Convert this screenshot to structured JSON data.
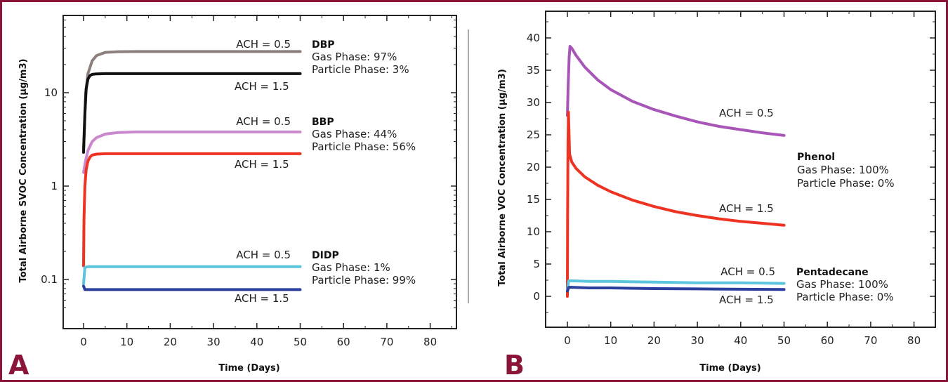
{
  "colors": {
    "border": "#8a1538",
    "panel_letter": "#8a1538",
    "axis": "#222222",
    "divider": "#555555",
    "gray": "#8c7f7c",
    "black": "#111111",
    "pink": "#cc88cc",
    "red": "#ee3322",
    "purple": "#a855b8",
    "cyan": "#5cc5dd",
    "navy": "#2a3f9e"
  },
  "chart_data": [
    {
      "panel": "A",
      "type": "line",
      "xlabel": "Time (Days)",
      "ylabel": "Total Airborne SVOC Concentration (µg/m3)",
      "xlim": [
        -5,
        85
      ],
      "yscale": "log",
      "x_ticks": [
        0,
        10,
        20,
        30,
        40,
        50,
        60,
        70,
        80
      ],
      "y_ticks": [
        {
          "value": 0.1,
          "label": "0.1"
        },
        {
          "value": 1,
          "label": "1"
        },
        {
          "value": 10,
          "label": "10"
        }
      ],
      "series": [
        {
          "color": "#8c7f7c",
          "x": [
            0,
            0.5,
            1,
            2,
            3,
            5,
            8,
            12,
            20,
            30,
            40,
            50
          ],
          "y": [
            2.5,
            10,
            16,
            22,
            25,
            27,
            27.5,
            27.6,
            27.6,
            27.6,
            27.6,
            27.6
          ]
        },
        {
          "color": "#111111",
          "x": [
            0,
            0.3,
            0.6,
            1,
            1.5,
            2,
            3,
            5,
            10,
            20,
            30,
            40,
            50
          ],
          "y": [
            2.3,
            6,
            11,
            14,
            15.3,
            15.7,
            15.9,
            16,
            16,
            16,
            16,
            16,
            16
          ]
        },
        {
          "color": "#cc88cc",
          "x": [
            0,
            0.5,
            1,
            2,
            3,
            5,
            8,
            12,
            20,
            30,
            40,
            50
          ],
          "y": [
            1.4,
            1.9,
            2.4,
            3.0,
            3.3,
            3.6,
            3.75,
            3.8,
            3.8,
            3.8,
            3.8,
            3.8
          ]
        },
        {
          "color": "#ee3322",
          "x": [
            0,
            0.1,
            0.3,
            0.6,
            1,
            1.5,
            2,
            3,
            5,
            10,
            20,
            30,
            40,
            50
          ],
          "y": [
            0.14,
            0.45,
            1.0,
            1.5,
            1.85,
            2.05,
            2.15,
            2.2,
            2.22,
            2.22,
            2.22,
            2.22,
            2.22,
            2.22
          ]
        },
        {
          "color": "#5cc5dd",
          "x": [
            0,
            0.3,
            1,
            5,
            10,
            20,
            30,
            40,
            50
          ],
          "y": [
            0.09,
            0.135,
            0.137,
            0.137,
            0.137,
            0.137,
            0.137,
            0.137,
            0.137
          ]
        },
        {
          "color": "#2a3f9e",
          "x": [
            0,
            0.3,
            1,
            5,
            10,
            20,
            30,
            40,
            50
          ],
          "y": [
            0.085,
            0.078,
            0.078,
            0.078,
            0.078,
            0.078,
            0.078,
            0.078,
            0.078
          ]
        }
      ],
      "annotations": [
        {
          "group": "DBP",
          "name": "DBP",
          "gas": "Gas Phase: 97%",
          "particle": "Particle Phase: 3%",
          "ach_top": "ACH = 0.5",
          "ach_bottom": "ACH = 1.5"
        },
        {
          "group": "BBP",
          "name": "BBP",
          "gas": "Gas Phase: 44%",
          "particle": "Particle Phase: 56%",
          "ach_top": "ACH = 0.5",
          "ach_bottom": "ACH = 1.5"
        },
        {
          "group": "DIDP",
          "name": "DIDP",
          "gas": "Gas Phase: 1%",
          "particle": "Particle Phase: 99%",
          "ach_top": "ACH = 0.5",
          "ach_bottom": "ACH = 1.5"
        }
      ]
    },
    {
      "panel": "B",
      "type": "line",
      "xlabel": "Time (Days)",
      "ylabel": "Total Airborne VOC Concentration (µg/m3)",
      "xlim": [
        -5,
        85
      ],
      "ylim": [
        -5,
        43
      ],
      "x_ticks": [
        0,
        10,
        20,
        30,
        40,
        50,
        60,
        70,
        80
      ],
      "y_ticks": [
        {
          "value": 0,
          "label": "0"
        },
        {
          "value": 5,
          "label": "5"
        },
        {
          "value": 10,
          "label": "10"
        },
        {
          "value": 15,
          "label": "15"
        },
        {
          "value": 20,
          "label": "20"
        },
        {
          "value": 25,
          "label": "25"
        },
        {
          "value": 30,
          "label": "30"
        },
        {
          "value": 35,
          "label": "35"
        },
        {
          "value": 40,
          "label": "40"
        }
      ],
      "series": [
        {
          "color": "#a855b8",
          "x": [
            0,
            0.2,
            0.4,
            0.6,
            1,
            2,
            4,
            7,
            10,
            15,
            20,
            25,
            30,
            35,
            40,
            45,
            50
          ],
          "y": [
            28,
            33,
            37,
            38.7,
            38.4,
            37.3,
            35.5,
            33.5,
            32.0,
            30.2,
            28.9,
            27.9,
            27.0,
            26.3,
            25.8,
            25.3,
            24.9
          ]
        },
        {
          "color": "#ee3322",
          "x": [
            0,
            0.05,
            0.15,
            0.25,
            0.5,
            1,
            2,
            4,
            7,
            10,
            15,
            20,
            25,
            30,
            35,
            40,
            45,
            50
          ],
          "y": [
            0,
            12,
            24,
            28.5,
            22,
            20.8,
            19.8,
            18.5,
            17.2,
            16.2,
            14.9,
            13.9,
            13.1,
            12.5,
            12.0,
            11.6,
            11.3,
            11.0
          ]
        },
        {
          "color": "#5cc5dd",
          "x": [
            0,
            0.3,
            1,
            5,
            10,
            20,
            30,
            40,
            50
          ],
          "y": [
            1.0,
            2.4,
            2.4,
            2.3,
            2.3,
            2.2,
            2.1,
            2.1,
            2.0
          ]
        },
        {
          "color": "#2a3f9e",
          "x": [
            0,
            0.3,
            1,
            5,
            10,
            20,
            30,
            40,
            50
          ],
          "y": [
            0.8,
            1.4,
            1.4,
            1.3,
            1.3,
            1.2,
            1.15,
            1.1,
            1.05
          ]
        }
      ],
      "annotations": [
        {
          "group": "Phenol",
          "name": "Phenol",
          "gas": "Gas Phase: 100%",
          "particle": "Particle Phase: 0%",
          "ach_top": "ACH = 0.5",
          "ach_bottom": "ACH = 1.5"
        },
        {
          "group": "Pentadecane",
          "name": "Pentadecane",
          "gas": "Gas Phase: 100%",
          "particle": "Particle Phase: 0%",
          "ach_top": "ACH = 0.5",
          "ach_bottom": "ACH = 1.5"
        }
      ]
    }
  ]
}
